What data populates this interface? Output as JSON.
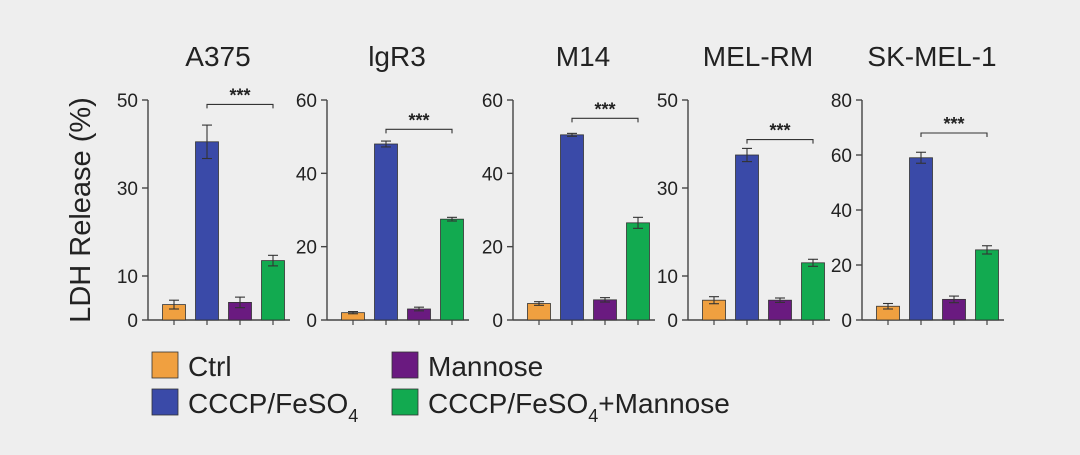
{
  "y_axis_label": "LDH Release (%)",
  "legend": [
    {
      "label": "Ctrl",
      "color": "#f0a040"
    },
    {
      "label": "CCCP/FeSO",
      "subscript": "4",
      "color": "#3a4aa8"
    },
    {
      "label": "Mannose",
      "color": "#6a1a80"
    },
    {
      "label": "CCCP/FeSO",
      "subscript": "4",
      "suffix": "+Mannose",
      "color": "#12aa50"
    }
  ],
  "significance_label": "***",
  "chart_data": [
    {
      "type": "bar",
      "title": "A375",
      "categories": [
        "Ctrl",
        "CCCP/FeSO4",
        "Mannose",
        "CCCP/FeSO4+Mannose"
      ],
      "values": [
        3.5,
        40.5,
        4.0,
        13.5
      ],
      "errors": [
        1.0,
        3.8,
        1.2,
        1.2
      ],
      "ylim": [
        0,
        50
      ],
      "yticks": [
        0,
        10,
        30,
        50
      ],
      "significance": {
        "from": 1,
        "to": 3,
        "y": 49
      }
    },
    {
      "type": "bar",
      "title": "lgR3",
      "categories": [
        "Ctrl",
        "CCCP/FeSO4",
        "Mannose",
        "CCCP/FeSO4+Mannose"
      ],
      "values": [
        2.0,
        48.0,
        3.0,
        27.5
      ],
      "errors": [
        0.3,
        0.8,
        0.5,
        0.5
      ],
      "ylim": [
        0,
        60
      ],
      "yticks": [
        0,
        20,
        40,
        60
      ],
      "significance": {
        "from": 1,
        "to": 3,
        "y": 52
      }
    },
    {
      "type": "bar",
      "title": "M14",
      "categories": [
        "Ctrl",
        "CCCP/FeSO4",
        "Mannose",
        "CCCP/FeSO4+Mannose"
      ],
      "values": [
        4.5,
        50.5,
        5.5,
        26.5
      ],
      "errors": [
        0.5,
        0.4,
        0.6,
        1.5
      ],
      "ylim": [
        0,
        60
      ],
      "yticks": [
        0,
        20,
        40,
        60
      ],
      "significance": {
        "from": 1,
        "to": 3,
        "y": 55
      }
    },
    {
      "type": "bar",
      "title": "MEL-RM",
      "categories": [
        "Ctrl",
        "CCCP/FeSO4",
        "Mannose",
        "CCCP/FeSO4+Mannose"
      ],
      "values": [
        4.5,
        37.5,
        4.5,
        13.0
      ],
      "errors": [
        0.8,
        1.5,
        0.5,
        0.8
      ],
      "ylim": [
        0,
        50
      ],
      "yticks": [
        0,
        10,
        30,
        50
      ],
      "significance": {
        "from": 1,
        "to": 3,
        "y": 41
      }
    },
    {
      "type": "bar",
      "title": "SK-MEL-1",
      "categories": [
        "Ctrl",
        "CCCP/FeSO4",
        "Mannose",
        "CCCP/FeSO4+Mannose"
      ],
      "values": [
        5.0,
        59.0,
        7.5,
        25.5
      ],
      "errors": [
        1.0,
        2.0,
        1.2,
        1.5
      ],
      "ylim": [
        0,
        80
      ],
      "yticks": [
        0,
        20,
        40,
        60,
        80
      ],
      "significance": {
        "from": 1,
        "to": 3,
        "y": 68
      }
    }
  ]
}
